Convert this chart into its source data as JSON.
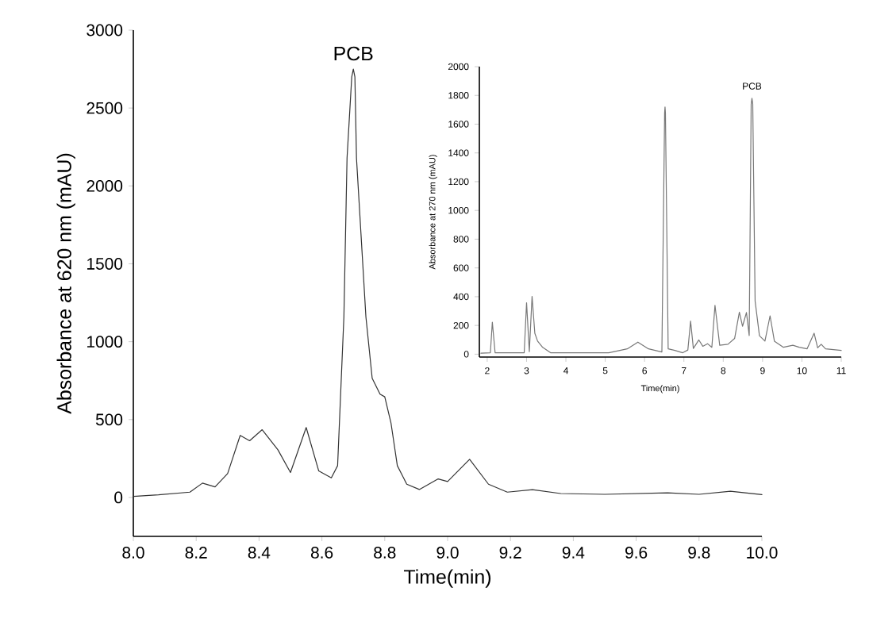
{
  "chart_data": [
    {
      "type": "line",
      "xlabel": "Time(min)",
      "ylabel": "Absorbance at 620 nm (mAU)",
      "color": "#333333",
      "xlim": [
        8,
        10
      ],
      "ylim": [
        -250,
        3000
      ],
      "xticks": [
        {
          "value": 8,
          "label": "8.0"
        },
        {
          "value": 8.2,
          "label": "8.2"
        },
        {
          "value": 8.4,
          "label": "8.4"
        },
        {
          "value": 8.6,
          "label": "8.6"
        },
        {
          "value": 8.8,
          "label": "8.8"
        },
        {
          "value": 9,
          "label": "9.0"
        },
        {
          "value": 9.2,
          "label": "9.2"
        },
        {
          "value": 9.4,
          "label": "9.4"
        },
        {
          "value": 9.6,
          "label": "9.6"
        },
        {
          "value": 9.8,
          "label": "9.8"
        },
        {
          "value": 10,
          "label": "10.0"
        }
      ],
      "yticks": [
        0,
        500,
        1000,
        1500,
        2000,
        2500,
        3000
      ],
      "x": [
        8.0,
        8.08,
        8.18,
        8.22,
        8.26,
        8.3,
        8.34,
        8.37,
        8.41,
        8.46,
        8.5,
        8.55,
        8.59,
        8.63,
        8.65,
        8.67,
        8.68,
        8.695,
        8.7,
        8.705,
        8.71,
        8.74,
        8.76,
        8.785,
        8.8,
        8.82,
        8.84,
        8.87,
        8.91,
        8.97,
        9.0,
        9.07,
        9.13,
        9.19,
        9.27,
        9.36,
        9.5,
        9.7,
        9.8,
        9.9,
        10.0
      ],
      "values": [
        7,
        17,
        34,
        92,
        68,
        153,
        398,
        364,
        435,
        306,
        160,
        449,
        170,
        126,
        204,
        1160,
        2180,
        2700,
        2750,
        2700,
        2180,
        1160,
        765,
        663,
        646,
        476,
        204,
        85,
        51,
        119,
        102,
        245,
        85,
        34,
        50,
        25,
        20,
        30,
        20,
        40,
        18
      ],
      "annotations": [
        {
          "text": "PCB",
          "x": 8.7,
          "y": 2752
        }
      ]
    },
    {
      "type": "line",
      "xlabel": "Time(min)",
      "ylabel": "Absorbance at 270 nm (mAU)",
      "color": "#777777",
      "xlim": [
        1.8,
        11
      ],
      "ylim": [
        -20,
        2000
      ],
      "xticks": [
        2,
        3,
        4,
        5,
        6,
        7,
        8,
        9,
        10,
        11
      ],
      "yticks": [
        0,
        200,
        400,
        600,
        800,
        1000,
        1200,
        1400,
        1600,
        1800,
        2000
      ],
      "x": [
        1.84,
        2.08,
        2.13,
        2.2,
        2.94,
        3.0,
        3.07,
        3.14,
        3.21,
        3.28,
        3.41,
        3.61,
        5.09,
        5.56,
        5.83,
        6.1,
        6.44,
        6.51,
        6.52,
        6.53,
        6.6,
        6.77,
        6.97,
        7.1,
        7.17,
        7.24,
        7.38,
        7.48,
        7.6,
        7.71,
        7.79,
        7.91,
        8.12,
        8.29,
        8.41,
        8.49,
        8.59,
        8.66,
        8.71,
        8.73,
        8.75,
        8.81,
        8.92,
        9.06,
        9.19,
        9.3,
        9.53,
        9.77,
        9.93,
        10.13,
        10.31,
        10.4,
        10.49,
        10.6,
        11.0
      ],
      "values": [
        7,
        10,
        223,
        10,
        10,
        358,
        18,
        402,
        146,
        91,
        47,
        10,
        10,
        37,
        84,
        37,
        15,
        1680,
        1720,
        1680,
        37,
        26,
        10,
        29,
        230,
        40,
        99,
        55,
        73,
        48,
        340,
        62,
        69,
        110,
        292,
        194,
        290,
        130,
        1740,
        1780,
        1740,
        370,
        128,
        91,
        267,
        91,
        48,
        62,
        48,
        37,
        146,
        44,
        69,
        37,
        26
      ],
      "annotations": [
        {
          "text": "PCB",
          "x": 8.73,
          "y": 1784
        }
      ]
    }
  ]
}
